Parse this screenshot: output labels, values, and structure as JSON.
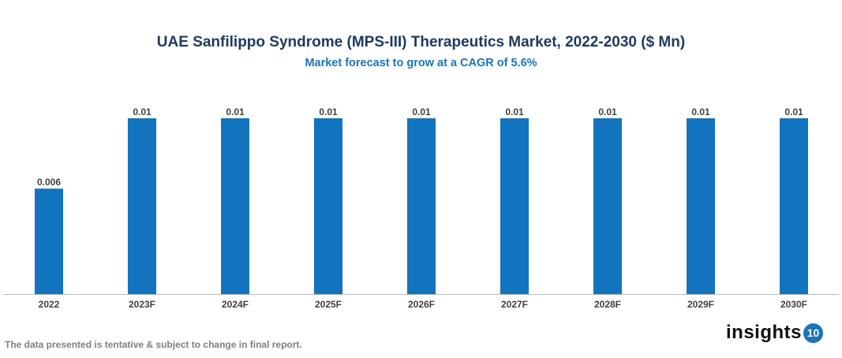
{
  "chart_data": {
    "type": "bar",
    "title": "UAE Sanfilippo Syndrome (MPS-III) Therapeutics Market, 2022-2030 ($ Mn)",
    "subtitle": "Market forecast to grow at a CAGR of 5.6%",
    "categories": [
      "2022",
      "2023F",
      "2024F",
      "2025F",
      "2026F",
      "2027F",
      "2028F",
      "2029F",
      "2030F"
    ],
    "values": [
      0.006,
      0.01,
      0.01,
      0.01,
      0.01,
      0.01,
      0.01,
      0.01,
      0.01
    ],
    "data_labels": [
      "0.006",
      "0.01",
      "0.01",
      "0.01",
      "0.01",
      "0.01",
      "0.01",
      "0.01",
      "0.01"
    ],
    "xlabel": "",
    "ylabel": "",
    "ylim": [
      0,
      0.01
    ],
    "grid": false,
    "bar_color": "#1273be"
  },
  "footnote": "The data presented is tentative & subject to change in final report.",
  "logo": {
    "text": "insights",
    "badge": "10"
  }
}
